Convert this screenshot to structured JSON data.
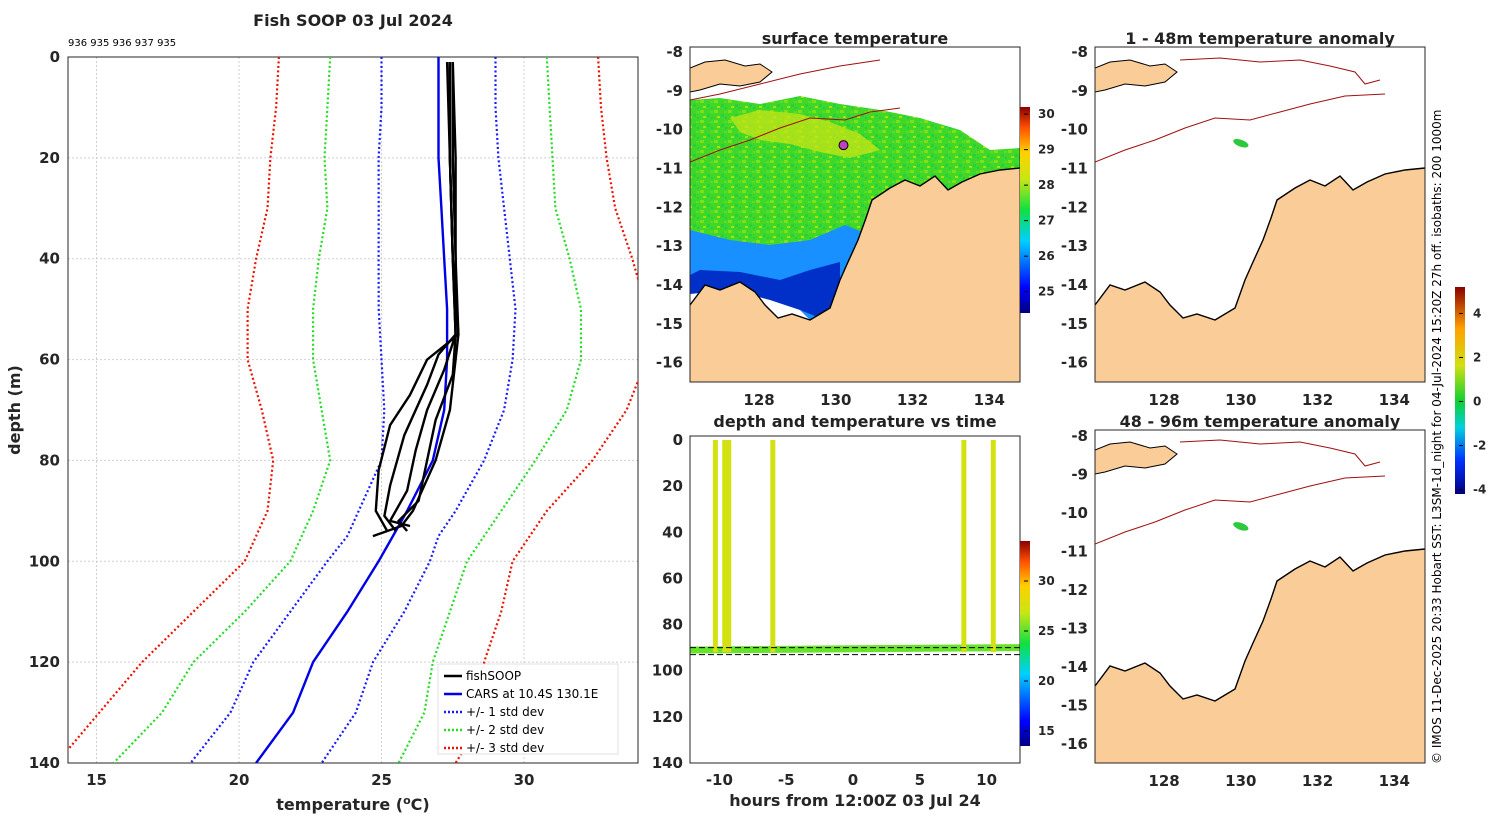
{
  "credit": "© IMOS 11-Dec-2025 20:33 Hobart SST: L3SM-1d_night for 04-Jul-2024 15:20Z 27h off. isobaths: 200  1000m",
  "colors": {
    "obs": "#000000",
    "cars": "#0000e6",
    "std1": "#1a1aff",
    "std2": "#22dd22",
    "std3": "#ee1100",
    "land": "#f9cc98",
    "isobath": "#a01010"
  },
  "chart_data": [
    {
      "id": "profile",
      "type": "line",
      "title": "Fish SOOP 03 Jul 2024",
      "subtitle": "936 935 936 937 935",
      "xlabel": "temperature (°C)",
      "ylabel": "depth (m)",
      "xlim": [
        14,
        34
      ],
      "ylim": [
        140,
        0
      ],
      "xticks": [
        "15",
        "20",
        "25",
        "30"
      ],
      "yticks": [
        "0",
        "20",
        "40",
        "60",
        "80",
        "100",
        "120",
        "140"
      ],
      "grid": true,
      "legend": {
        "placement": "bottom-right",
        "entries": [
          "fishSOOP",
          "CARS at 10.4S 130.1E",
          "+/- 1 std dev",
          "+/- 2 std dev",
          "+/- 3 std dev"
        ]
      },
      "depth": [
        0,
        10,
        20,
        30,
        40,
        50,
        60,
        70,
        80,
        90,
        95,
        100,
        110,
        120,
        130,
        140
      ],
      "cars": [
        27.0,
        27.0,
        27.0,
        27.1,
        27.2,
        27.3,
        27.3,
        27.2,
        26.8,
        25.9,
        25.4,
        24.9,
        23.8,
        22.6,
        21.9,
        20.6
      ],
      "std": {
        "1": [
          2.0,
          2.0,
          2.1,
          2.2,
          2.3,
          2.4,
          2.3,
          2.1,
          1.8,
          1.7,
          1.6,
          1.8,
          2.0,
          2.1,
          2.2,
          2.3
        ],
        "2": [
          3.8,
          3.9,
          4.0,
          4.0,
          4.4,
          4.7,
          4.7,
          4.3,
          3.6,
          3.3,
          3.2,
          3.1,
          3.6,
          4.2,
          4.6,
          5.0
        ],
        "3": [
          5.6,
          5.7,
          5.9,
          6.1,
          6.6,
          7.0,
          7.0,
          6.4,
          5.6,
          4.9,
          4.8,
          4.7,
          5.4,
          6.0,
          6.8,
          7.0
        ]
      },
      "casts": [
        {
          "depth": [
            1,
            20,
            40,
            55,
            60,
            70,
            80,
            90,
            93,
            95
          ],
          "temp": [
            27.5,
            27.6,
            27.6,
            27.7,
            27.6,
            27.4,
            26.9,
            26.1,
            25.7,
            24.7
          ]
        },
        {
          "depth": [
            1,
            20,
            40,
            55,
            59,
            65,
            75,
            85,
            91,
            94
          ],
          "temp": [
            27.4,
            27.4,
            27.5,
            27.6,
            27.0,
            26.6,
            25.8,
            25.3,
            25.1,
            25.5
          ]
        },
        {
          "depth": [
            1,
            20,
            40,
            55,
            62,
            70,
            78,
            86,
            92,
            93
          ],
          "temp": [
            27.5,
            27.5,
            27.6,
            27.6,
            27.2,
            26.6,
            26.2,
            25.9,
            25.3,
            26.0
          ]
        },
        {
          "depth": [
            1,
            20,
            40,
            55,
            60,
            67,
            73,
            82,
            90,
            94
          ],
          "temp": [
            27.3,
            27.4,
            27.5,
            27.7,
            26.6,
            26.0,
            25.3,
            24.9,
            24.8,
            25.2
          ]
        },
        {
          "depth": [
            1,
            20,
            40,
            55,
            63,
            72,
            80,
            88,
            92,
            94
          ],
          "temp": [
            27.4,
            27.4,
            27.5,
            27.6,
            27.5,
            26.9,
            26.6,
            26.3,
            25.6,
            25.9
          ]
        }
      ]
    },
    {
      "id": "sst",
      "type": "heatmap",
      "title": "surface temperature",
      "xlim": [
        126.2,
        134.8
      ],
      "ylim": [
        -16.5,
        -8
      ],
      "xticks": [
        "128",
        "130",
        "132",
        "134"
      ],
      "yticks": [
        "-8",
        "-9",
        "-10",
        "-11",
        "-12",
        "-13",
        "-14",
        "-15",
        "-16"
      ],
      "colorbar": {
        "min": 24.4,
        "max": 30.2,
        "ticks": [
          "25",
          "26",
          "27",
          "28",
          "29",
          "30"
        ]
      },
      "position": {
        "lon": 130.2,
        "lat": -10.4
      }
    },
    {
      "id": "anom1",
      "type": "heatmap",
      "title": "1 - 48m temperature anomaly",
      "xlim": [
        126.2,
        134.8
      ],
      "ylim": [
        -16.5,
        -8
      ],
      "xticks": [
        "128",
        "130",
        "132",
        "134"
      ],
      "yticks": [
        "-8",
        "-9",
        "-10",
        "-11",
        "-12",
        "-13",
        "-14",
        "-15",
        "-16"
      ],
      "anomaly_value": 0.1
    },
    {
      "id": "anom2",
      "type": "heatmap",
      "title": "48 - 96m temperature anomaly",
      "xlim": [
        126.2,
        134.8
      ],
      "ylim": [
        -16.5,
        -8
      ],
      "xticks": [
        "128",
        "130",
        "132",
        "134"
      ],
      "yticks": [
        "-8",
        "-9",
        "-10",
        "-11",
        "-12",
        "-13",
        "-14",
        "-15",
        "-16"
      ],
      "anomaly_value": 0.1,
      "colorbar": {
        "min": -4.2,
        "max": 5.2,
        "ticks": [
          "4",
          "2",
          "0",
          "-2",
          "-4"
        ]
      }
    },
    {
      "id": "timeseries",
      "type": "scatter",
      "title": "depth and temperature vs time",
      "xlabel": "hours from 12:00Z 03 Jul 24",
      "xlim": [
        -12.2,
        12.5
      ],
      "ylim": [
        140,
        0
      ],
      "xticks": [
        "-10",
        "-5",
        "0",
        "5",
        "10"
      ],
      "yticks": [
        "0",
        "20",
        "40",
        "60",
        "80",
        "100",
        "120",
        "140"
      ],
      "colorbar": {
        "min": 13.5,
        "max": 34,
        "ticks": [
          "15",
          "20",
          "25",
          "30"
        ]
      },
      "casts": [
        -10.3,
        -9.6,
        -9.3,
        -6.0,
        8.3,
        10.5
      ],
      "surface_temp": 27.4,
      "bottom_temp": 25.2,
      "bottom_depth": 92
    }
  ]
}
